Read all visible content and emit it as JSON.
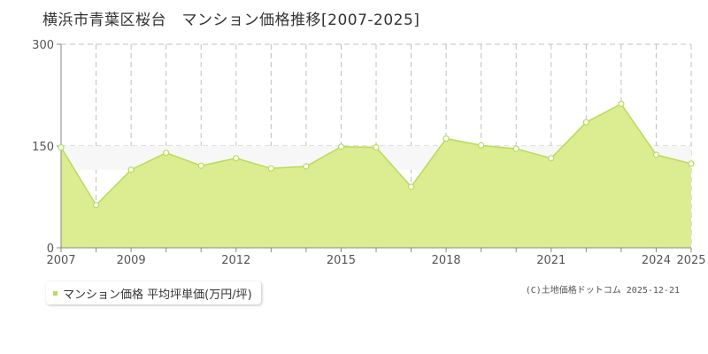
{
  "title": "横浜市青葉区桜台　マンション価格推移[2007-2025]",
  "legend_label": "マンション価格 平均坪単価(万円/坪)",
  "copyright": "(C)土地価格ドットコム 2025-12-21",
  "colors": {
    "area_fill": "#dcec90",
    "line": "#b7dc5a",
    "marker_fill": "#ffffff",
    "grid": "#c0c0c0",
    "axis_text": "#555555",
    "legend_swatch": "#b7dc5a"
  },
  "chart_data": {
    "type": "area",
    "title": "横浜市青葉区桜台　マンション価格推移[2007-2025]",
    "xlabel": "",
    "ylabel": "",
    "xlim": [
      2007,
      2025
    ],
    "ylim": [
      0,
      300
    ],
    "y_ticks": [
      0,
      150,
      300
    ],
    "x_tick_labels": [
      2007,
      2009,
      2012,
      2015,
      2018,
      2021,
      2024,
      2025
    ],
    "grid": true,
    "legend_position": "bottom-left",
    "series": [
      {
        "name": "マンション価格 平均坪単価(万円/坪)",
        "x": [
          2007,
          2008,
          2009,
          2010,
          2011,
          2012,
          2013,
          2014,
          2015,
          2016,
          2017,
          2018,
          2019,
          2020,
          2021,
          2022,
          2023,
          2024,
          2025
        ],
        "values": [
          148,
          63,
          115,
          140,
          121,
          132,
          117,
          120,
          149,
          148,
          90,
          161,
          151,
          146,
          132,
          185,
          212,
          137,
          124
        ]
      }
    ]
  }
}
